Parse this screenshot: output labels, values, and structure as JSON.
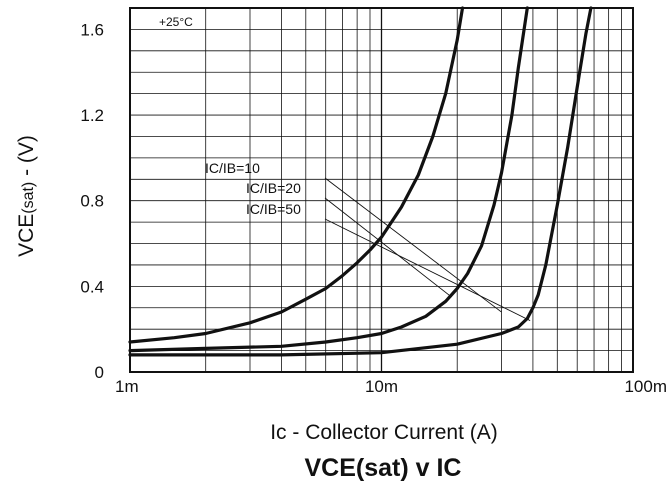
{
  "chart_data": {
    "type": "line",
    "title_main": "VCE(sat)",
    "title_rest": " v IC",
    "xlabel": "Ic - Collector Current (A)",
    "ylabel_main": "VCE",
    "ylabel_sub": "(sat)",
    "ylabel_rest": " - (V)",
    "annotation": "+25°C",
    "x_scale": "log",
    "xlim": [
      0.001,
      0.1
    ],
    "ylim": [
      0,
      1.7
    ],
    "x_ticks": [
      {
        "value": 0.001,
        "label": "1m"
      },
      {
        "value": 0.01,
        "label": "10m"
      },
      {
        "value": 0.1,
        "label": "100m"
      }
    ],
    "y_ticks": [
      {
        "value": 0,
        "label": "0"
      },
      {
        "value": 0.4,
        "label": "0.4"
      },
      {
        "value": 0.8,
        "label": "0.8"
      },
      {
        "value": 1.2,
        "label": "1.2"
      },
      {
        "value": 1.6,
        "label": "1.6"
      }
    ],
    "grid": true,
    "series": [
      {
        "name": "IC/IB=10",
        "x": [
          0.001,
          0.0015,
          0.002,
          0.003,
          0.004,
          0.005,
          0.006,
          0.007,
          0.008,
          0.009,
          0.01,
          0.012,
          0.014,
          0.016,
          0.018,
          0.02,
          0.021
        ],
        "y": [
          0.14,
          0.16,
          0.18,
          0.23,
          0.28,
          0.34,
          0.39,
          0.45,
          0.51,
          0.57,
          0.63,
          0.77,
          0.92,
          1.1,
          1.3,
          1.55,
          1.7
        ]
      },
      {
        "name": "IC/IB=20",
        "x": [
          0.001,
          0.002,
          0.004,
          0.006,
          0.008,
          0.01,
          0.012,
          0.015,
          0.018,
          0.02,
          0.022,
          0.025,
          0.028,
          0.03,
          0.033,
          0.035,
          0.038
        ],
        "y": [
          0.1,
          0.11,
          0.12,
          0.14,
          0.16,
          0.18,
          0.21,
          0.26,
          0.33,
          0.39,
          0.46,
          0.59,
          0.78,
          0.93,
          1.2,
          1.42,
          1.7
        ]
      },
      {
        "name": "IC/IB=50",
        "x": [
          0.001,
          0.004,
          0.01,
          0.02,
          0.03,
          0.035,
          0.038,
          0.04,
          0.042,
          0.045,
          0.05,
          0.055,
          0.06,
          0.065,
          0.068
        ],
        "y": [
          0.08,
          0.08,
          0.09,
          0.13,
          0.18,
          0.21,
          0.25,
          0.3,
          0.36,
          0.5,
          0.78,
          1.05,
          1.33,
          1.58,
          1.7
        ]
      }
    ],
    "series_label_lines": [
      {
        "end": [
          0.03,
          0.28
        ]
      },
      {
        "end": [
          0.019,
          0.35
        ]
      },
      {
        "end": [
          0.039,
          0.24
        ]
      }
    ]
  }
}
